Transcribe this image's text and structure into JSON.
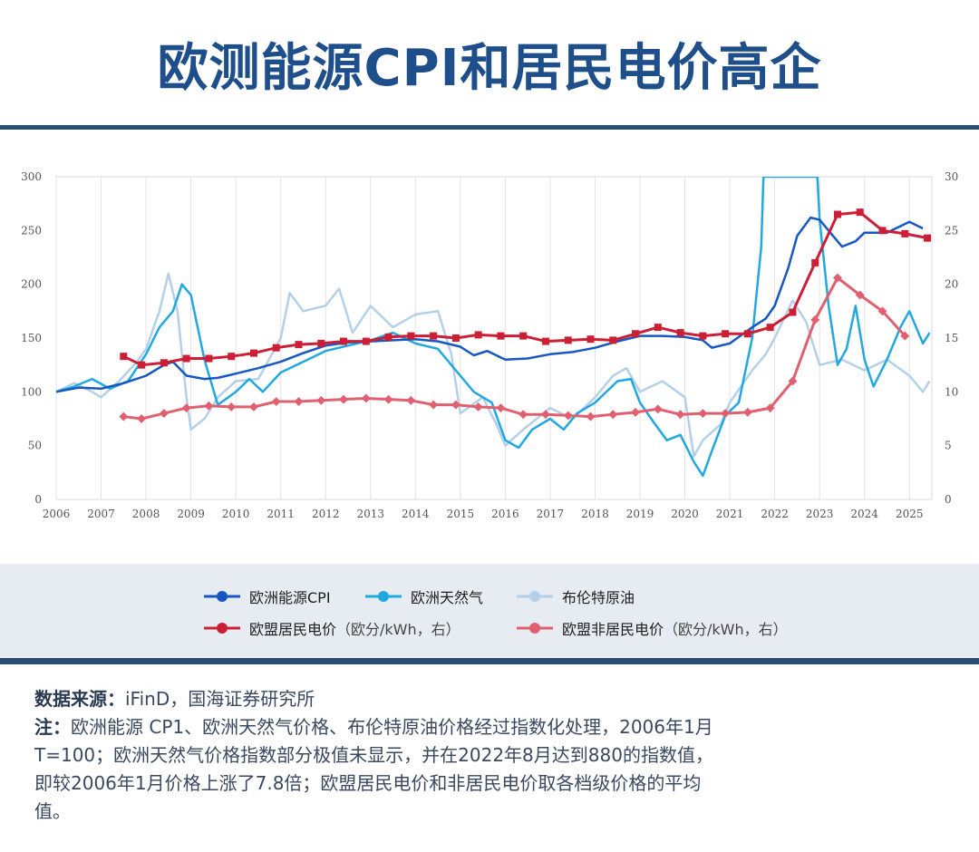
{
  "header": {
    "title": "欧测能源CPI和居民电价高企"
  },
  "chart_data": {
    "type": "line",
    "x_ticks": [
      "2006",
      "2007",
      "2008",
      "2009",
      "2010",
      "2011",
      "2012",
      "2013",
      "2014",
      "2015",
      "2016",
      "2017",
      "2018",
      "2019",
      "2020",
      "2021",
      "2022",
      "2023",
      "2024",
      "2025"
    ],
    "xlim": [
      2006.0,
      2025.5
    ],
    "ylim_left": [
      0,
      300
    ],
    "y_ticks_left": [
      "0",
      "50",
      "100",
      "150",
      "200",
      "250",
      "300"
    ],
    "ylim_right": [
      0,
      30
    ],
    "y_ticks_right": [
      "0",
      "5",
      "10",
      "15",
      "20",
      "25",
      "30"
    ],
    "grid": "vertical",
    "legend_position": "bottom",
    "series": [
      {
        "name": "欧洲能源CPI",
        "axis": "left",
        "color": "#1757c2",
        "marker": "none",
        "points": [
          [
            2006.0,
            100
          ],
          [
            2006.5,
            104
          ],
          [
            2007.0,
            103
          ],
          [
            2007.5,
            108
          ],
          [
            2008.0,
            115
          ],
          [
            2008.4,
            125
          ],
          [
            2008.6,
            128
          ],
          [
            2008.9,
            115
          ],
          [
            2009.3,
            112
          ],
          [
            2009.6,
            113
          ],
          [
            2010.0,
            117
          ],
          [
            2010.5,
            122
          ],
          [
            2011.0,
            128
          ],
          [
            2011.5,
            136
          ],
          [
            2012.0,
            143
          ],
          [
            2012.5,
            146
          ],
          [
            2013.0,
            147
          ],
          [
            2013.5,
            148
          ],
          [
            2014.0,
            149
          ],
          [
            2014.5,
            147
          ],
          [
            2015.0,
            142
          ],
          [
            2015.3,
            134
          ],
          [
            2015.6,
            138
          ],
          [
            2016.0,
            130
          ],
          [
            2016.5,
            131
          ],
          [
            2017.0,
            135
          ],
          [
            2017.5,
            137
          ],
          [
            2018.0,
            141
          ],
          [
            2018.5,
            147
          ],
          [
            2019.0,
            152
          ],
          [
            2019.5,
            152
          ],
          [
            2020.0,
            151
          ],
          [
            2020.4,
            148
          ],
          [
            2020.6,
            141
          ],
          [
            2021.0,
            145
          ],
          [
            2021.5,
            160
          ],
          [
            2021.8,
            168
          ],
          [
            2022.0,
            180
          ],
          [
            2022.3,
            215
          ],
          [
            2022.5,
            245
          ],
          [
            2022.8,
            262
          ],
          [
            2023.0,
            260
          ],
          [
            2023.3,
            245
          ],
          [
            2023.5,
            235
          ],
          [
            2023.8,
            240
          ],
          [
            2024.0,
            248
          ],
          [
            2024.5,
            248
          ],
          [
            2025.0,
            258
          ],
          [
            2025.3,
            252
          ]
        ]
      },
      {
        "name": "欧洲天然气",
        "axis": "left",
        "color": "#22a8e0",
        "marker": "none",
        "points": [
          [
            2006.0,
            100
          ],
          [
            2006.4,
            105
          ],
          [
            2006.8,
            112
          ],
          [
            2007.2,
            103
          ],
          [
            2007.6,
            110
          ],
          [
            2008.0,
            135
          ],
          [
            2008.3,
            160
          ],
          [
            2008.6,
            175
          ],
          [
            2008.8,
            200
          ],
          [
            2009.0,
            190
          ],
          [
            2009.3,
            130
          ],
          [
            2009.6,
            88
          ],
          [
            2010.0,
            100
          ],
          [
            2010.3,
            112
          ],
          [
            2010.6,
            100
          ],
          [
            2011.0,
            118
          ],
          [
            2011.5,
            128
          ],
          [
            2012.0,
            138
          ],
          [
            2012.5,
            143
          ],
          [
            2013.0,
            148
          ],
          [
            2013.5,
            155
          ],
          [
            2014.0,
            145
          ],
          [
            2014.5,
            140
          ],
          [
            2015.0,
            115
          ],
          [
            2015.3,
            100
          ],
          [
            2015.7,
            90
          ],
          [
            2016.0,
            55
          ],
          [
            2016.3,
            48
          ],
          [
            2016.6,
            65
          ],
          [
            2017.0,
            75
          ],
          [
            2017.3,
            65
          ],
          [
            2017.6,
            80
          ],
          [
            2018.0,
            90
          ],
          [
            2018.5,
            110
          ],
          [
            2018.8,
            112
          ],
          [
            2019.0,
            90
          ],
          [
            2019.3,
            72
          ],
          [
            2019.6,
            55
          ],
          [
            2019.9,
            60
          ],
          [
            2020.2,
            35
          ],
          [
            2020.4,
            22
          ],
          [
            2020.6,
            45
          ],
          [
            2020.9,
            78
          ],
          [
            2021.2,
            90
          ],
          [
            2021.5,
            150
          ],
          [
            2021.7,
            235
          ],
          [
            2021.75,
            300
          ],
          [
            2022.95,
            300
          ],
          [
            2023.0,
            260
          ],
          [
            2023.2,
            180
          ],
          [
            2023.4,
            125
          ],
          [
            2023.6,
            140
          ],
          [
            2023.8,
            180
          ],
          [
            2024.0,
            130
          ],
          [
            2024.2,
            105
          ],
          [
            2024.5,
            130
          ],
          [
            2024.8,
            160
          ],
          [
            2025.0,
            175
          ],
          [
            2025.3,
            145
          ],
          [
            2025.45,
            155
          ]
        ]
      },
      {
        "name": "布伦特原油",
        "axis": "left",
        "color": "#b4d0e8",
        "marker": "none",
        "points": [
          [
            2006.0,
            100
          ],
          [
            2006.4,
            108
          ],
          [
            2006.8,
            100
          ],
          [
            2007.0,
            95
          ],
          [
            2007.4,
            110
          ],
          [
            2007.8,
            128
          ],
          [
            2008.0,
            140
          ],
          [
            2008.3,
            175
          ],
          [
            2008.5,
            210
          ],
          [
            2008.7,
            175
          ],
          [
            2008.9,
            95
          ],
          [
            2009.0,
            65
          ],
          [
            2009.3,
            75
          ],
          [
            2009.6,
            95
          ],
          [
            2010.0,
            110
          ],
          [
            2010.5,
            112
          ],
          [
            2011.0,
            150
          ],
          [
            2011.2,
            192
          ],
          [
            2011.5,
            175
          ],
          [
            2012.0,
            180
          ],
          [
            2012.3,
            196
          ],
          [
            2012.6,
            155
          ],
          [
            2013.0,
            180
          ],
          [
            2013.5,
            160
          ],
          [
            2014.0,
            172
          ],
          [
            2014.5,
            175
          ],
          [
            2014.8,
            135
          ],
          [
            2015.0,
            80
          ],
          [
            2015.5,
            95
          ],
          [
            2015.8,
            70
          ],
          [
            2016.0,
            50
          ],
          [
            2016.4,
            65
          ],
          [
            2016.7,
            75
          ],
          [
            2017.0,
            85
          ],
          [
            2017.5,
            75
          ],
          [
            2018.0,
            95
          ],
          [
            2018.4,
            115
          ],
          [
            2018.7,
            122
          ],
          [
            2019.0,
            100
          ],
          [
            2019.5,
            110
          ],
          [
            2020.0,
            95
          ],
          [
            2020.2,
            40
          ],
          [
            2020.4,
            55
          ],
          [
            2020.8,
            70
          ],
          [
            2021.0,
            90
          ],
          [
            2021.5,
            120
          ],
          [
            2021.8,
            135
          ],
          [
            2022.0,
            150
          ],
          [
            2022.4,
            185
          ],
          [
            2022.7,
            165
          ],
          [
            2023.0,
            125
          ],
          [
            2023.5,
            130
          ],
          [
            2024.0,
            120
          ],
          [
            2024.5,
            130
          ],
          [
            2025.0,
            115
          ],
          [
            2025.3,
            100
          ],
          [
            2025.45,
            110
          ]
        ]
      },
      {
        "name": "欧盟居民电价",
        "unit": "（欧分/kWh，右）",
        "axis": "right",
        "color": "#cc1f36",
        "marker": "square",
        "points": [
          [
            2007.5,
            13.3
          ],
          [
            2007.9,
            12.5
          ],
          [
            2008.4,
            12.7
          ],
          [
            2008.9,
            13.1
          ],
          [
            2009.4,
            13.1
          ],
          [
            2009.9,
            13.3
          ],
          [
            2010.4,
            13.6
          ],
          [
            2010.9,
            14.1
          ],
          [
            2011.4,
            14.4
          ],
          [
            2011.9,
            14.5
          ],
          [
            2012.4,
            14.7
          ],
          [
            2012.9,
            14.7
          ],
          [
            2013.4,
            15.1
          ],
          [
            2013.9,
            15.2
          ],
          [
            2014.4,
            15.2
          ],
          [
            2014.9,
            15.0
          ],
          [
            2015.4,
            15.3
          ],
          [
            2015.9,
            15.2
          ],
          [
            2016.4,
            15.2
          ],
          [
            2016.9,
            14.7
          ],
          [
            2017.4,
            14.8
          ],
          [
            2017.9,
            14.9
          ],
          [
            2018.4,
            14.8
          ],
          [
            2018.9,
            15.4
          ],
          [
            2019.4,
            16.0
          ],
          [
            2019.9,
            15.5
          ],
          [
            2020.4,
            15.2
          ],
          [
            2020.9,
            15.4
          ],
          [
            2021.4,
            15.4
          ],
          [
            2021.9,
            16.0
          ],
          [
            2022.4,
            17.4
          ],
          [
            2022.9,
            22.0
          ],
          [
            2023.4,
            26.5
          ],
          [
            2023.9,
            26.7
          ],
          [
            2024.4,
            25.0
          ],
          [
            2024.9,
            24.7
          ],
          [
            2025.4,
            24.3
          ]
        ]
      },
      {
        "name": "欧盟非居民电价",
        "unit": "（欧分/kWh，右）",
        "axis": "right",
        "color": "#e0606f",
        "marker": "diamond",
        "points": [
          [
            2007.5,
            7.7
          ],
          [
            2007.9,
            7.5
          ],
          [
            2008.4,
            8.0
          ],
          [
            2008.9,
            8.5
          ],
          [
            2009.4,
            8.7
          ],
          [
            2009.9,
            8.6
          ],
          [
            2010.4,
            8.6
          ],
          [
            2010.9,
            9.1
          ],
          [
            2011.4,
            9.1
          ],
          [
            2011.9,
            9.2
          ],
          [
            2012.4,
            9.3
          ],
          [
            2012.9,
            9.4
          ],
          [
            2013.4,
            9.3
          ],
          [
            2013.9,
            9.2
          ],
          [
            2014.4,
            8.8
          ],
          [
            2014.9,
            8.8
          ],
          [
            2015.4,
            8.6
          ],
          [
            2015.9,
            8.5
          ],
          [
            2016.4,
            7.9
          ],
          [
            2016.9,
            7.9
          ],
          [
            2017.4,
            7.8
          ],
          [
            2017.9,
            7.7
          ],
          [
            2018.4,
            7.9
          ],
          [
            2018.9,
            8.1
          ],
          [
            2019.4,
            8.4
          ],
          [
            2019.9,
            7.9
          ],
          [
            2020.4,
            8.0
          ],
          [
            2020.9,
            8.0
          ],
          [
            2021.4,
            8.1
          ],
          [
            2021.9,
            8.5
          ],
          [
            2022.4,
            11.0
          ],
          [
            2022.9,
            16.7
          ],
          [
            2023.4,
            20.6
          ],
          [
            2023.9,
            19.0
          ],
          [
            2024.4,
            17.5
          ],
          [
            2024.9,
            15.2
          ]
        ]
      }
    ]
  },
  "notes": {
    "source_label": "数据来源：",
    "source_text": "iFinD，国海证券研究所",
    "note_label": "注：",
    "note_text": "欧洲能源 CP1、欧洲天然气价格、布伦特原油价格经过指数化处理，2006年1月T=100；欧洲天然气价格指数部分极值未显示，并在2022年8月达到880的指数值，即较2006年1月价格上涨了7.8倍；欧盟居民电价和非居民电价取各档级价格的平均值。"
  }
}
